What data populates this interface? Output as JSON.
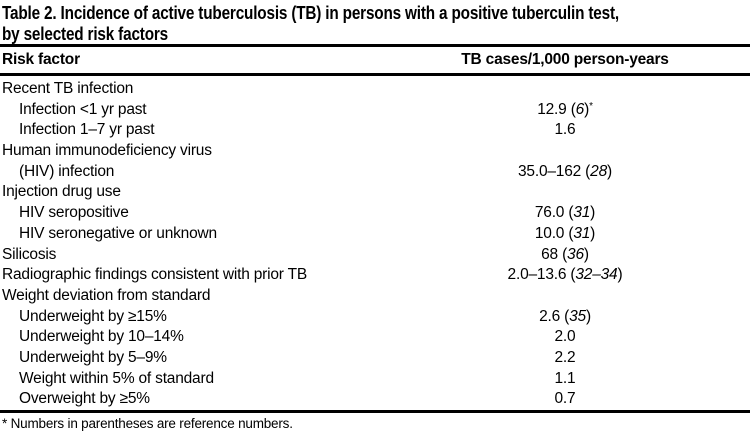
{
  "table": {
    "title_line1": "Table 2. Incidence of active tuberculosis (TB) in persons with a positive tuberculin test,",
    "title_line2": "by selected risk factors",
    "header": {
      "risk_factor": "Risk factor",
      "tb_cases": "TB cases/1,000 person-years"
    },
    "rows": [
      {
        "label": "Recent TB infection",
        "indent": 0,
        "value": "",
        "refs": "",
        "marker": ""
      },
      {
        "label": "Infection <1 yr past",
        "indent": 1,
        "value": "12.9",
        "refs": "6",
        "marker": "*"
      },
      {
        "label": "Infection 1–7 yr past",
        "indent": 1,
        "value": "1.6",
        "refs": "",
        "marker": ""
      },
      {
        "label": "Human immunodeficiency virus",
        "indent": 0,
        "value": "",
        "refs": "",
        "marker": ""
      },
      {
        "label": "(HIV) infection",
        "indent": 1,
        "value": "35.0–162",
        "refs": "28",
        "marker": ""
      },
      {
        "label": "Injection drug use",
        "indent": 0,
        "value": "",
        "refs": "",
        "marker": ""
      },
      {
        "label": "HIV seropositive",
        "indent": 1,
        "value": "76.0",
        "refs": "31",
        "marker": ""
      },
      {
        "label": "HIV seronegative or unknown",
        "indent": 1,
        "value": "10.0",
        "refs": "31",
        "marker": ""
      },
      {
        "label": "Silicosis",
        "indent": 0,
        "value": "68",
        "refs": "36",
        "marker": ""
      },
      {
        "label": "Radiographic findings consistent with prior TB",
        "indent": 0,
        "value": "2.0–13.6",
        "refs": "32–34",
        "marker": ""
      },
      {
        "label": "Weight deviation from standard",
        "indent": 0,
        "value": "",
        "refs": "",
        "marker": ""
      },
      {
        "label": "Underweight by ≥15%",
        "indent": 1,
        "value": "2.6",
        "refs": "35",
        "marker": ""
      },
      {
        "label": "Underweight by 10–14%",
        "indent": 1,
        "value": "2.0",
        "refs": "",
        "marker": ""
      },
      {
        "label": "Underweight by 5–9%",
        "indent": 1,
        "value": "2.2",
        "refs": "",
        "marker": ""
      },
      {
        "label": "Weight within 5% of standard",
        "indent": 1,
        "value": "1.1",
        "refs": "",
        "marker": ""
      },
      {
        "label": "Overweight by ≥5%",
        "indent": 1,
        "value": "0.7",
        "refs": "",
        "marker": ""
      }
    ],
    "footnote": "* Numbers in parentheses are reference numbers."
  }
}
